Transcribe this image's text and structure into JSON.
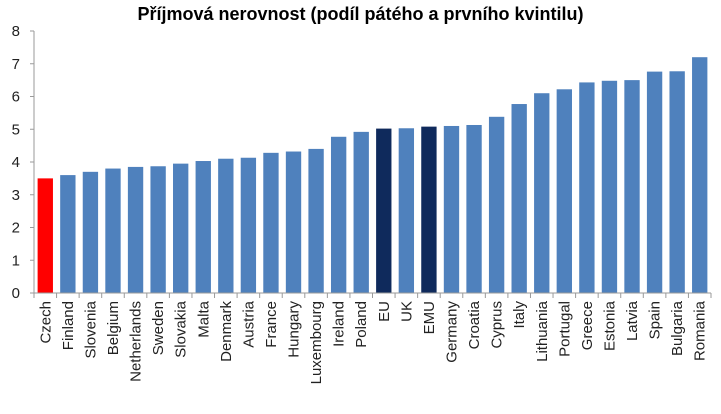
{
  "chart_data": {
    "type": "bar",
    "title": "Příjmová nerovnost (podíl pátého a prvního kvintilu)",
    "xlabel": "",
    "ylabel": "",
    "ylim": [
      0,
      8
    ],
    "yticks": [
      0,
      1,
      2,
      3,
      4,
      5,
      6,
      7,
      8
    ],
    "grid": false,
    "legend": "none",
    "categories": [
      "Czech",
      "Finland",
      "Slovenia",
      "Belgium",
      "Netherlands",
      "Sweden",
      "Slovakia",
      "Malta",
      "Denmark",
      "Austria",
      "France",
      "Hungary",
      "Luxembourg",
      "Ireland",
      "Poland",
      "EU",
      "UK",
      "EMU",
      "Germany",
      "Croatia",
      "Cyprus",
      "Italy",
      "Lithuania",
      "Portugal",
      "Greece",
      "Estonia",
      "Latvia",
      "Spain",
      "Bulgaria",
      "Romania"
    ],
    "values": [
      3.5,
      3.6,
      3.7,
      3.8,
      3.85,
      3.87,
      3.95,
      4.03,
      4.1,
      4.13,
      4.28,
      4.32,
      4.4,
      4.77,
      4.92,
      5.02,
      5.03,
      5.08,
      5.1,
      5.13,
      5.38,
      5.77,
      6.1,
      6.22,
      6.43,
      6.48,
      6.5,
      6.76,
      6.77,
      7.2
    ],
    "colors": {
      "default": "#4f81bd",
      "highlight": "#ff0000",
      "aggregate": "#0f2a5c",
      "axis": "#9a9a9a"
    },
    "highlight_categories": [
      "Czech"
    ],
    "aggregate_categories": [
      "EU",
      "EMU"
    ]
  }
}
